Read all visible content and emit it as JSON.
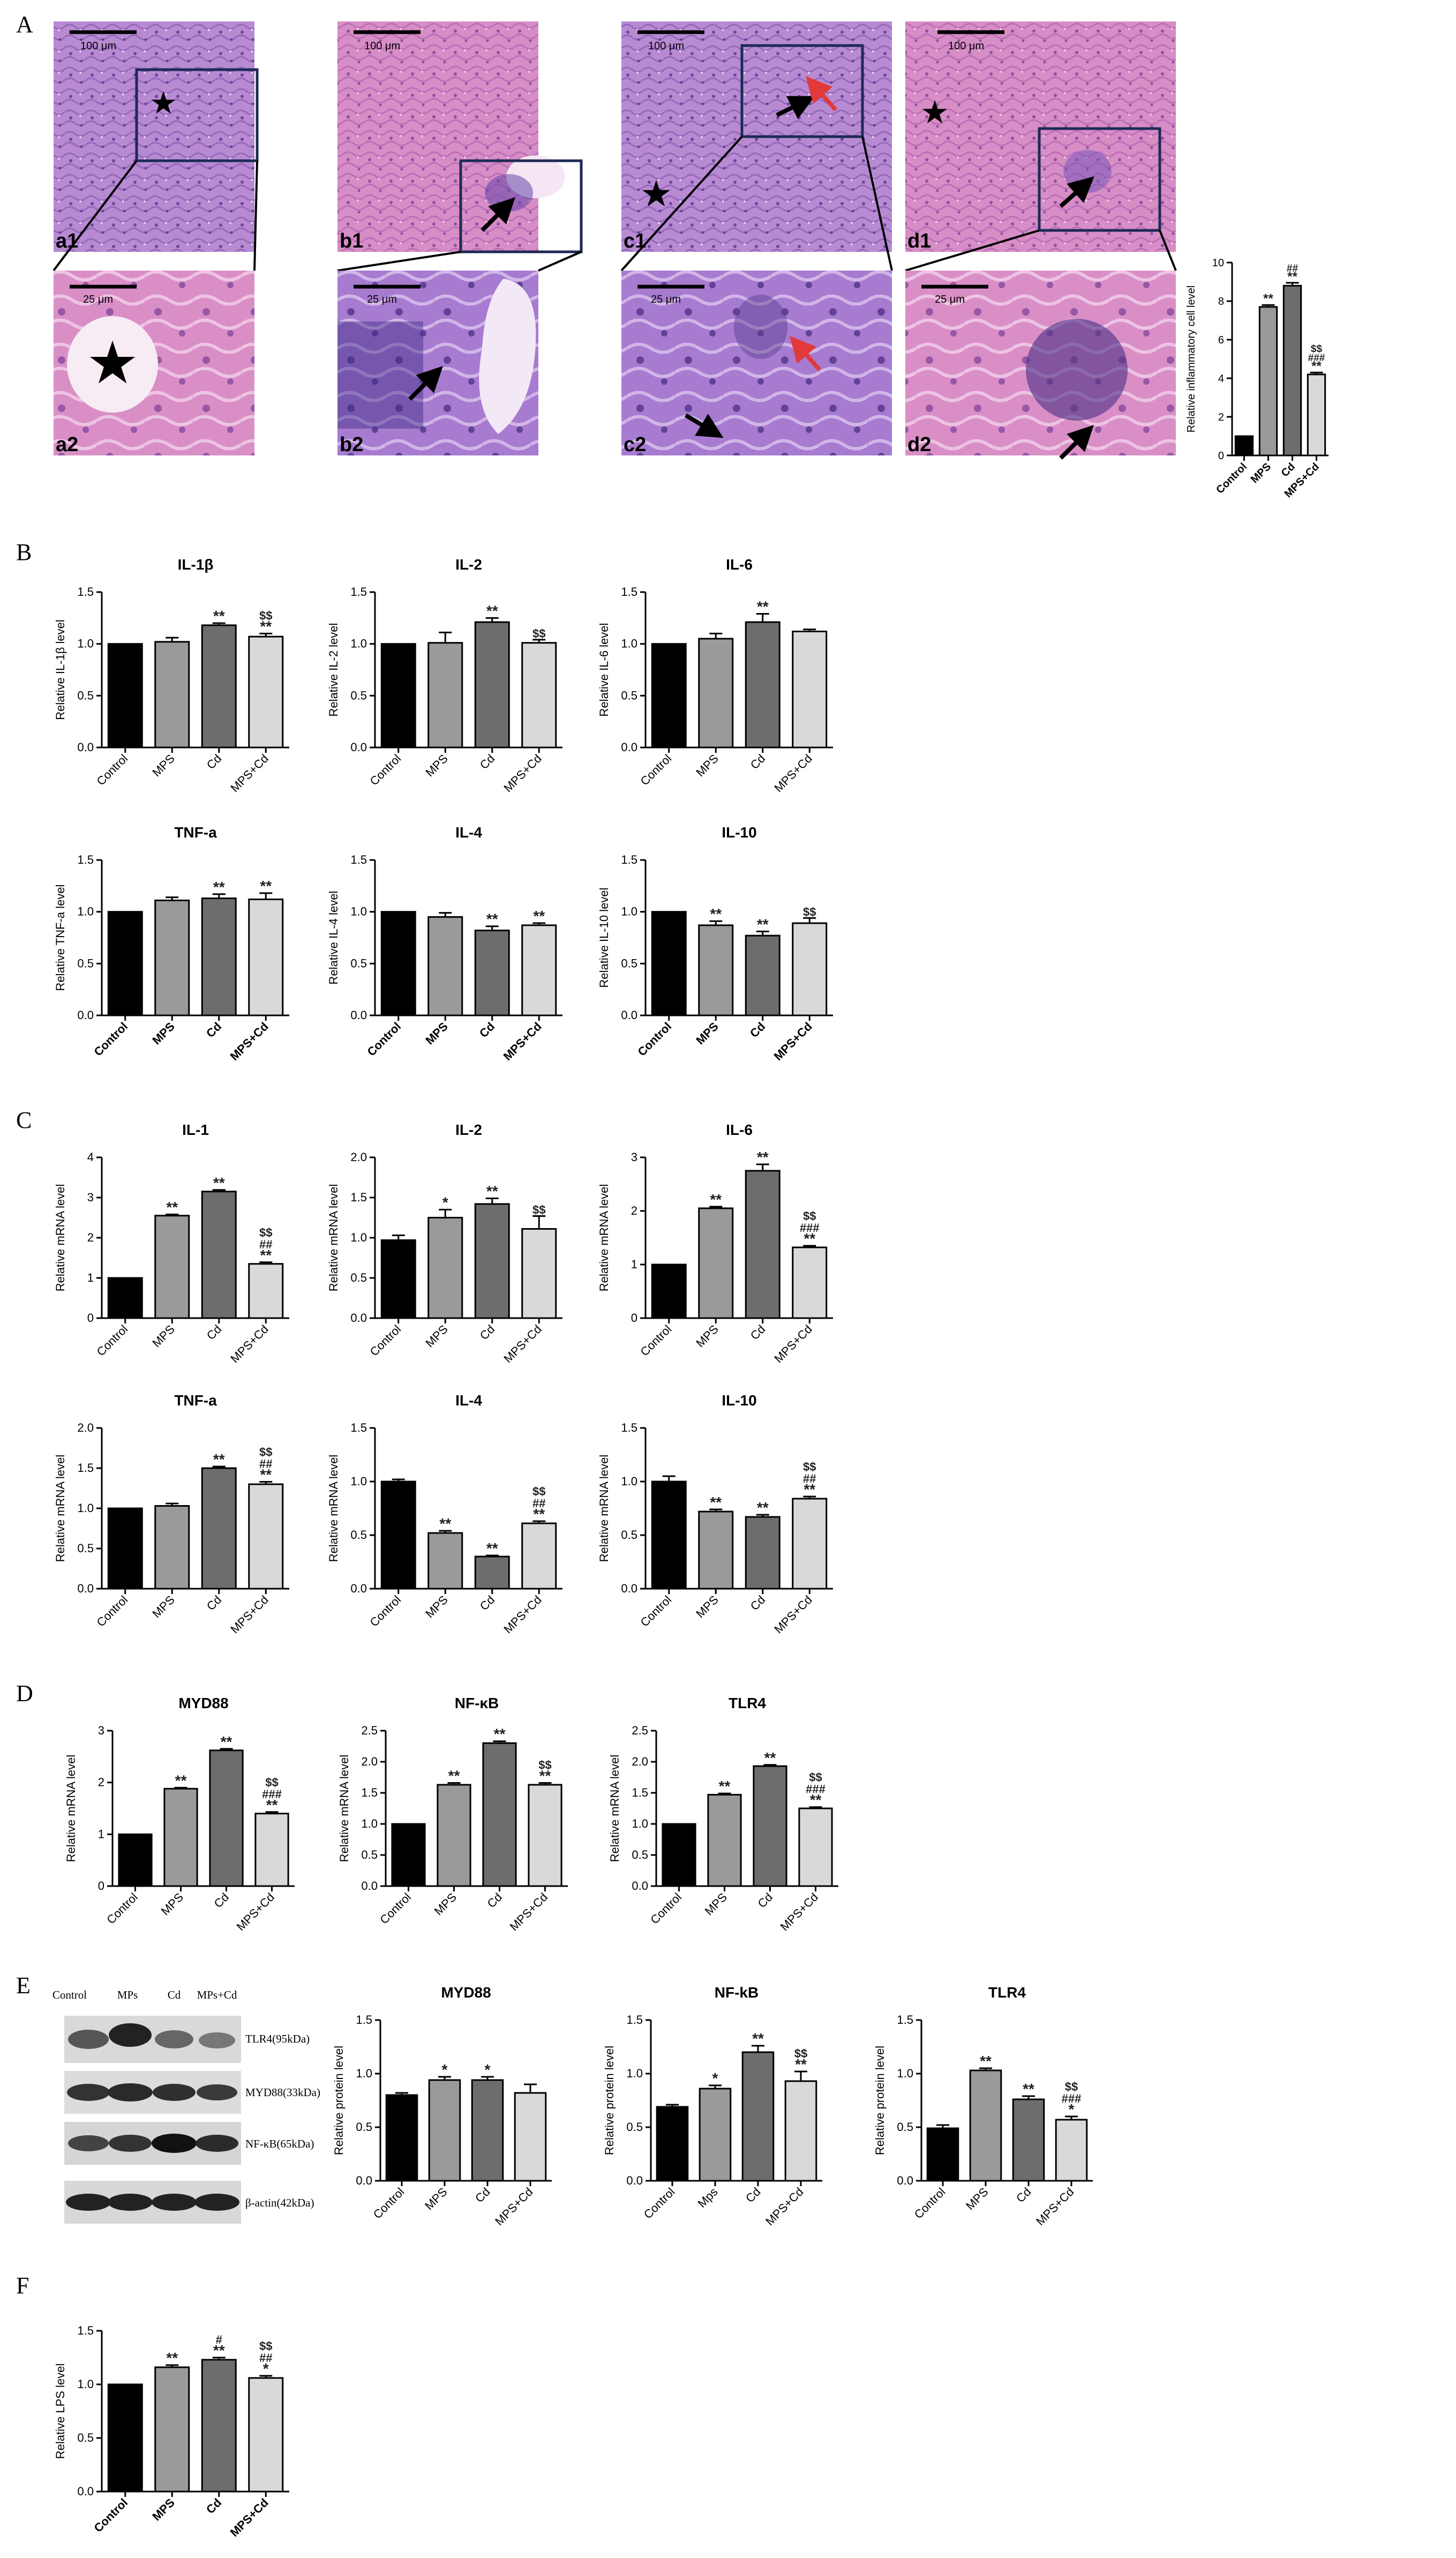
{
  "figure": {
    "panel_letters": [
      "A",
      "B",
      "C",
      "D",
      "E",
      "F"
    ],
    "colors": {
      "Control": "#000000",
      "MPS": "#9a9a9a",
      "Cd": "#6d6d6d",
      "MPS+Cd": "#d9d9d9",
      "he_pink": "#e9a0c8",
      "he_purple": "#9a6bbd",
      "arrow_black": "#000000",
      "arrow_red": "#e23a3a"
    },
    "histology": {
      "top_labels": [
        "a1",
        "b1",
        "c1",
        "d1"
      ],
      "top_scale": [
        "100 μm",
        "100 μm",
        "100 μm",
        "100 μm"
      ],
      "bottom_labels": [
        "a2",
        "b2",
        "c2",
        "d2"
      ],
      "bottom_scale": [
        "25 μm",
        "25 μm",
        "25 μm",
        "25 μm"
      ],
      "marker_icons": [
        "star-icon",
        "black-arrow-icon",
        "red-arrow-icon"
      ]
    },
    "western_blot": {
      "lanes": [
        "Control",
        "MPs",
        "Cd",
        "MPs+Cd"
      ],
      "bands": [
        "TLR4(95kDa)",
        "MYD88(33kDa)",
        "NF-κB(65kDa)",
        "β-actin(42kDa)"
      ]
    }
  },
  "chart_data": [
    {
      "id": "A",
      "type": "bar",
      "title": "",
      "xlabel": "",
      "ylabel": "Relative inflammatory cell level",
      "categories": [
        "Control",
        "MPS",
        "Cd",
        "MPS+Cd"
      ],
      "values": [
        1,
        7.7,
        8.8,
        4.2
      ],
      "errors": [
        0,
        0.1,
        0.15,
        0.1
      ],
      "ylim": [
        0,
        10
      ],
      "yticks": [
        "0",
        "2",
        "4",
        "6",
        "8",
        "10"
      ],
      "annotations": [
        [],
        [
          "**"
        ],
        [
          "##",
          "**"
        ],
        [
          "$$",
          "###",
          "**"
        ]
      ]
    },
    {
      "id": "B1",
      "type": "bar",
      "title": "IL-1β",
      "xlabel": "",
      "ylabel": "Relative IL-1β level",
      "categories": [
        "Control",
        "MPS",
        "Cd",
        "MPS+Cd"
      ],
      "values": [
        1.0,
        1.02,
        1.18,
        1.07
      ],
      "errors": [
        0,
        0.04,
        0.02,
        0.03
      ],
      "ylim": [
        0,
        1.5
      ],
      "yticks": [
        "0.0",
        "0.5",
        "1.0",
        "1.5"
      ],
      "annotations": [
        [],
        [],
        [
          "**"
        ],
        [
          "$$",
          "**"
        ]
      ]
    },
    {
      "id": "B2",
      "type": "bar",
      "title": "IL-2",
      "xlabel": "",
      "ylabel": "Relative IL-2 level",
      "categories": [
        "Control",
        "MPS",
        "Cd",
        "MPS+Cd"
      ],
      "values": [
        1.0,
        1.01,
        1.21,
        1.01
      ],
      "errors": [
        0,
        0.1,
        0.04,
        0.03
      ],
      "ylim": [
        0,
        1.5
      ],
      "yticks": [
        "0.0",
        "0.5",
        "1.0",
        "1.5"
      ],
      "annotations": [
        [],
        [],
        [
          "**"
        ],
        [
          "$$"
        ]
      ]
    },
    {
      "id": "B3",
      "type": "bar",
      "title": "IL-6",
      "xlabel": "",
      "ylabel": "Relative IL-6 level",
      "categories": [
        "Control",
        "MPS",
        "Cd",
        "MPS+Cd"
      ],
      "values": [
        1.0,
        1.05,
        1.21,
        1.12
      ],
      "errors": [
        0,
        0.05,
        0.08,
        0.02
      ],
      "ylim": [
        0,
        1.5
      ],
      "yticks": [
        "0.0",
        "0.5",
        "1.0",
        "1.5"
      ],
      "annotations": [
        [],
        [],
        [
          "**"
        ],
        []
      ]
    },
    {
      "id": "B4",
      "type": "bar",
      "title": "TNF-a",
      "xlabel": "",
      "ylabel": "Relative TNF-a level",
      "categories": [
        "Control",
        "MPS",
        "Cd",
        "MPS+Cd"
      ],
      "values": [
        1.0,
        1.11,
        1.13,
        1.12
      ],
      "errors": [
        0,
        0.03,
        0.04,
        0.06
      ],
      "ylim": [
        0,
        1.5
      ],
      "yticks": [
        "0.0",
        "0.5",
        "1.0",
        "1.5"
      ],
      "annotations": [
        [],
        [],
        [
          "**"
        ],
        [
          "**"
        ]
      ]
    },
    {
      "id": "B5",
      "type": "bar",
      "title": "IL-4",
      "xlabel": "",
      "ylabel": "Relative IL-4 level",
      "categories": [
        "Control",
        "MPS",
        "Cd",
        "MPS+Cd"
      ],
      "values": [
        1.0,
        0.95,
        0.82,
        0.87
      ],
      "errors": [
        0,
        0.04,
        0.04,
        0.02
      ],
      "ylim": [
        0,
        1.5
      ],
      "yticks": [
        "0.0",
        "0.5",
        "1.0",
        "1.5"
      ],
      "annotations": [
        [],
        [],
        [
          "**"
        ],
        [
          "**"
        ]
      ]
    },
    {
      "id": "B6",
      "type": "bar",
      "title": "IL-10",
      "xlabel": "",
      "ylabel": "Relative IL-10 level",
      "categories": [
        "Control",
        "MPS",
        "Cd",
        "MPS+Cd"
      ],
      "values": [
        1.0,
        0.87,
        0.77,
        0.89
      ],
      "errors": [
        0,
        0.04,
        0.04,
        0.05
      ],
      "ylim": [
        0,
        1.5
      ],
      "yticks": [
        "0.0",
        "0.5",
        "1.0",
        "1.5"
      ],
      "annotations": [
        [],
        [
          "**"
        ],
        [
          "**"
        ],
        [
          "$$"
        ]
      ]
    },
    {
      "id": "C1",
      "type": "bar",
      "title": "IL-1",
      "xlabel": "",
      "ylabel": "Relative mRNA level",
      "categories": [
        "Control",
        "MPS",
        "Cd",
        "MPS+Cd"
      ],
      "values": [
        1.0,
        2.55,
        3.15,
        1.35
      ],
      "errors": [
        0,
        0.03,
        0.04,
        0.04
      ],
      "ylim": [
        0,
        4
      ],
      "yticks": [
        "0",
        "1",
        "2",
        "3",
        "4"
      ],
      "annotations": [
        [],
        [
          "**"
        ],
        [
          "**"
        ],
        [
          "$$",
          "##",
          "**"
        ]
      ]
    },
    {
      "id": "C2",
      "type": "bar",
      "title": "IL-2",
      "xlabel": "",
      "ylabel": "Relative mRNA level",
      "categories": [
        "Control",
        "MPS",
        "Cd",
        "MPS+Cd"
      ],
      "values": [
        0.97,
        1.25,
        1.42,
        1.11
      ],
      "errors": [
        0.06,
        0.1,
        0.07,
        0.16
      ],
      "ylim": [
        0,
        2.0
      ],
      "yticks": [
        "0.0",
        "0.5",
        "1.0",
        "1.5",
        "2.0"
      ],
      "annotations": [
        [],
        [
          "*"
        ],
        [
          "**"
        ],
        [
          "$$"
        ]
      ]
    },
    {
      "id": "C3",
      "type": "bar",
      "title": "IL-6",
      "xlabel": "",
      "ylabel": "Relative mRNA level",
      "categories": [
        "Control",
        "MPS",
        "Cd",
        "MPS+Cd"
      ],
      "values": [
        1.0,
        2.05,
        2.75,
        1.32
      ],
      "errors": [
        0,
        0.03,
        0.12,
        0.03
      ],
      "ylim": [
        0,
        3
      ],
      "yticks": [
        "0",
        "1",
        "2",
        "3"
      ],
      "annotations": [
        [],
        [
          "**"
        ],
        [
          "**"
        ],
        [
          "$$",
          "###",
          "**"
        ]
      ]
    },
    {
      "id": "C4",
      "type": "bar",
      "title": "TNF-a",
      "xlabel": "",
      "ylabel": "Relative mRNA level",
      "categories": [
        "Control",
        "MPS",
        "Cd",
        "MPS+Cd"
      ],
      "values": [
        1.0,
        1.03,
        1.5,
        1.3
      ],
      "errors": [
        0,
        0.03,
        0.02,
        0.03
      ],
      "ylim": [
        0,
        2.0
      ],
      "yticks": [
        "0.0",
        "0.5",
        "1.0",
        "1.5",
        "2.0"
      ],
      "annotations": [
        [],
        [],
        [
          "**"
        ],
        [
          "$$",
          "##",
          "**"
        ]
      ]
    },
    {
      "id": "C5",
      "type": "bar",
      "title": "IL-4",
      "xlabel": "",
      "ylabel": "Relative mRNA level",
      "categories": [
        "Control",
        "MPS",
        "Cd",
        "MPS+Cd"
      ],
      "values": [
        1.0,
        0.52,
        0.3,
        0.61
      ],
      "errors": [
        0.02,
        0.02,
        0.01,
        0.02
      ],
      "ylim": [
        0,
        1.5
      ],
      "yticks": [
        "0.0",
        "0.5",
        "1.0",
        "1.5"
      ],
      "annotations": [
        [],
        [
          "**"
        ],
        [
          "**"
        ],
        [
          "$$",
          "##",
          "**"
        ]
      ]
    },
    {
      "id": "C6",
      "type": "bar",
      "title": "IL-10",
      "xlabel": "",
      "ylabel": "Relative mRNA level",
      "categories": [
        "Control",
        "MPS",
        "Cd",
        "MPS+Cd"
      ],
      "values": [
        1.0,
        0.72,
        0.67,
        0.84
      ],
      "errors": [
        0.05,
        0.02,
        0.02,
        0.02
      ],
      "ylim": [
        0,
        1.5
      ],
      "yticks": [
        "0.0",
        "0.5",
        "1.0",
        "1.5"
      ],
      "annotations": [
        [],
        [
          "**"
        ],
        [
          "**"
        ],
        [
          "$$",
          "##",
          "**"
        ]
      ]
    },
    {
      "id": "D1",
      "type": "bar",
      "title": "MYD88",
      "xlabel": "",
      "ylabel": "Relative mRNA level",
      "categories": [
        "Control",
        "MPS",
        "Cd",
        "MPS+Cd"
      ],
      "values": [
        1.0,
        1.88,
        2.62,
        1.4
      ],
      "errors": [
        0,
        0.02,
        0.03,
        0.03
      ],
      "ylim": [
        0,
        3
      ],
      "yticks": [
        "0",
        "1",
        "2",
        "3"
      ],
      "annotations": [
        [],
        [
          "**"
        ],
        [
          "**"
        ],
        [
          "$$",
          "###",
          "**"
        ]
      ]
    },
    {
      "id": "D2",
      "type": "bar",
      "title": "NF-κB",
      "xlabel": "",
      "ylabel": "Relative mRNA level",
      "categories": [
        "Control",
        "MPS",
        "Cd",
        "MPS+Cd"
      ],
      "values": [
        1.0,
        1.63,
        2.3,
        1.63
      ],
      "errors": [
        0,
        0.03,
        0.03,
        0.03
      ],
      "ylim": [
        0,
        2.5
      ],
      "yticks": [
        "0.0",
        "0.5",
        "1.0",
        "1.5",
        "2.0",
        "2.5"
      ],
      "annotations": [
        [],
        [
          "**"
        ],
        [
          "**"
        ],
        [
          "$$",
          "**"
        ]
      ]
    },
    {
      "id": "D3",
      "type": "bar",
      "title": "TLR4",
      "xlabel": "",
      "ylabel": "Relative mRNA level",
      "categories": [
        "Control",
        "MPS",
        "Cd",
        "MPS+Cd"
      ],
      "values": [
        1.0,
        1.47,
        1.93,
        1.25
      ],
      "errors": [
        0,
        0.02,
        0.02,
        0.02
      ],
      "ylim": [
        0,
        2.5
      ],
      "yticks": [
        "0.0",
        "0.5",
        "1.0",
        "1.5",
        "2.0",
        "2.5"
      ],
      "annotations": [
        [],
        [
          "**"
        ],
        [
          "**"
        ],
        [
          "$$",
          "###",
          "**"
        ]
      ]
    },
    {
      "id": "E1",
      "type": "bar",
      "title": "MYD88",
      "xlabel": "",
      "ylabel": "Relative protein level",
      "categories": [
        "Control",
        "MPS",
        "Cd",
        "MPS+Cd"
      ],
      "values": [
        0.8,
        0.94,
        0.94,
        0.82
      ],
      "errors": [
        0.02,
        0.03,
        0.03,
        0.08
      ],
      "ylim": [
        0,
        1.5
      ],
      "yticks": [
        "0.0",
        "0.5",
        "1.0",
        "1.5"
      ],
      "annotations": [
        [],
        [
          "*"
        ],
        [
          "*"
        ],
        []
      ]
    },
    {
      "id": "E2",
      "type": "bar",
      "title": "NF-kB",
      "xlabel": "",
      "ylabel": "Relative protein level",
      "categories": [
        "Control",
        "Mps",
        "Cd",
        "MPS+Cd"
      ],
      "values": [
        0.69,
        0.86,
        1.2,
        0.93
      ],
      "errors": [
        0.02,
        0.03,
        0.06,
        0.09
      ],
      "ylim": [
        0,
        1.5
      ],
      "yticks": [
        "0.0",
        "0.5",
        "1.0",
        "1.5"
      ],
      "annotations": [
        [],
        [
          "*"
        ],
        [
          "**"
        ],
        [
          "$$",
          "**"
        ]
      ]
    },
    {
      "id": "E3",
      "type": "bar",
      "title": "TLR4",
      "xlabel": "",
      "ylabel": "Relative protein level",
      "categories": [
        "Control",
        "MPS",
        "Cd",
        "MPS+Cd"
      ],
      "values": [
        0.49,
        1.03,
        0.76,
        0.57
      ],
      "errors": [
        0.03,
        0.02,
        0.03,
        0.03
      ],
      "ylim": [
        0,
        1.5
      ],
      "yticks": [
        "0.0",
        "0.5",
        "1.0",
        "1.5"
      ],
      "annotations": [
        [],
        [
          "**"
        ],
        [
          "**"
        ],
        [
          "$$",
          "###",
          "*"
        ]
      ]
    },
    {
      "id": "F",
      "type": "bar",
      "title": "",
      "xlabel": "",
      "ylabel": "Relative LPS level",
      "categories": [
        "Control",
        "MPS",
        "Cd",
        "MPS+Cd"
      ],
      "values": [
        1.0,
        1.16,
        1.23,
        1.06
      ],
      "errors": [
        0,
        0.02,
        0.02,
        0.02
      ],
      "ylim": [
        0,
        1.5
      ],
      "yticks": [
        "0.0",
        "0.5",
        "1.0",
        "1.5"
      ],
      "annotations": [
        [],
        [
          "**"
        ],
        [
          "#",
          "**"
        ],
        [
          "$$",
          "##",
          "*"
        ]
      ]
    }
  ]
}
